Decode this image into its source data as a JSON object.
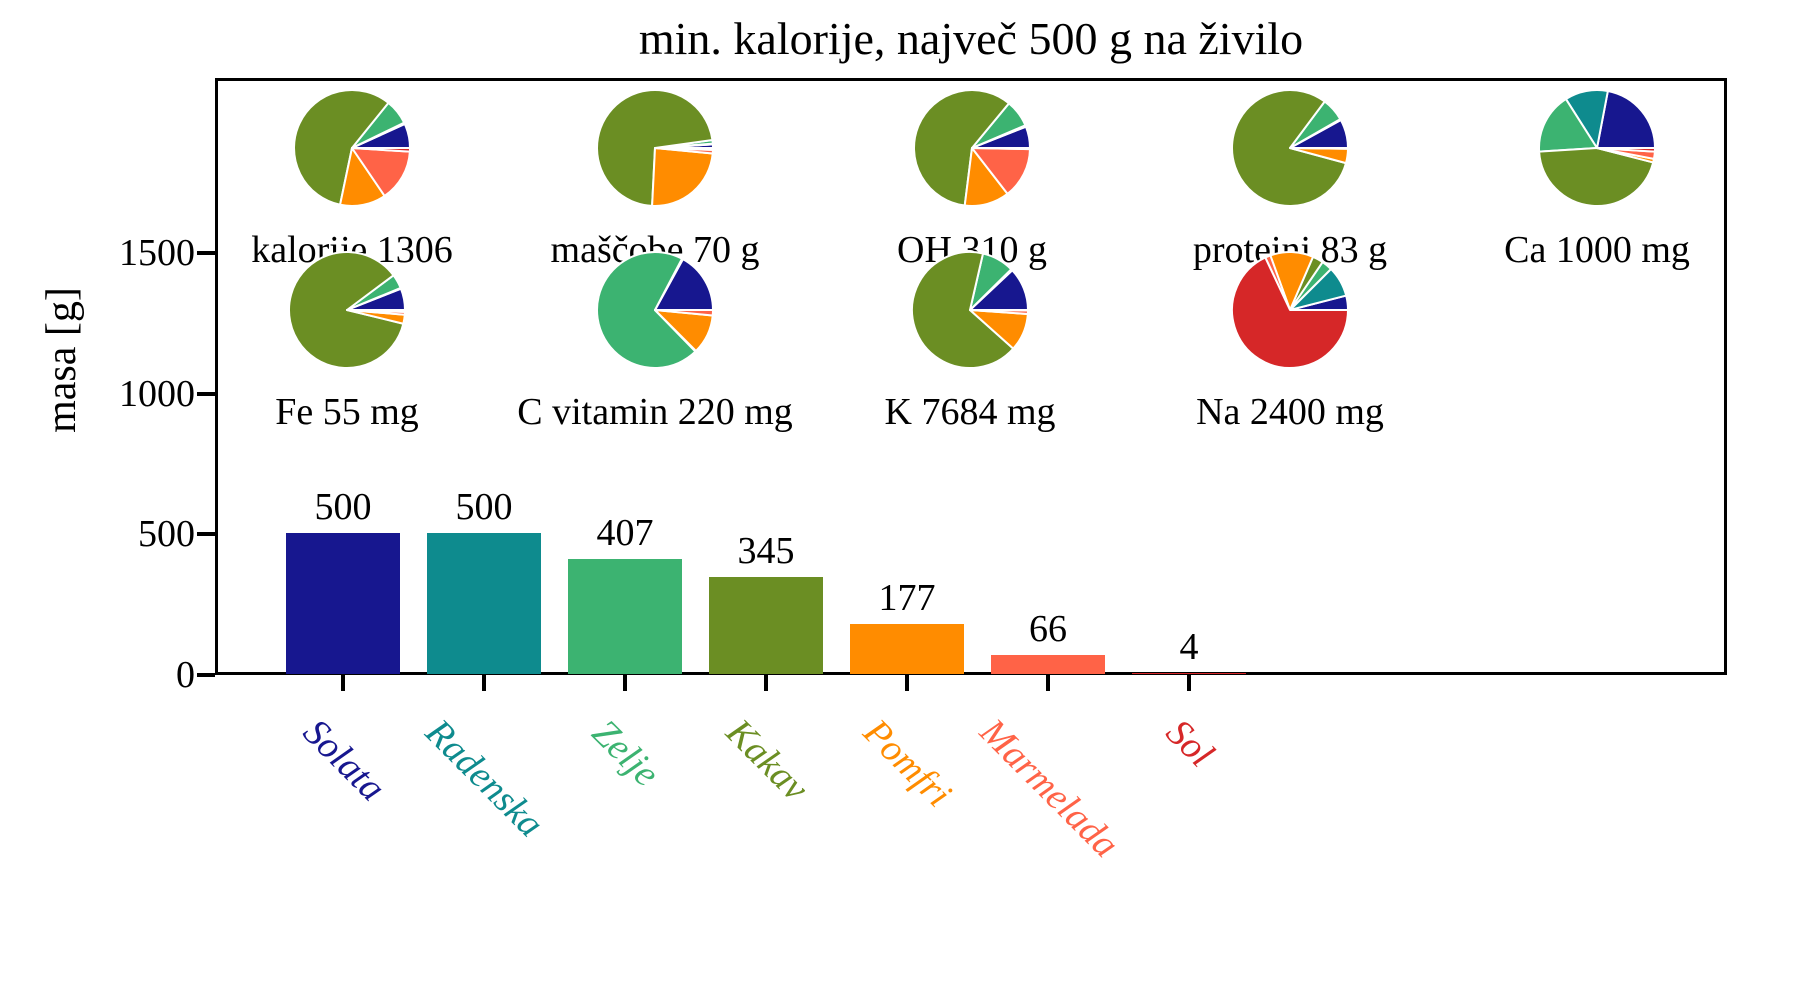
{
  "title": "min. kalorije, največ 500 g na živilo",
  "ylabel": "masa [g]",
  "foods": [
    {
      "name": "Solata",
      "color": "#17178f"
    },
    {
      "name": "Radenska",
      "color": "#0e8b8e"
    },
    {
      "name": "Zelje",
      "color": "#3cb371"
    },
    {
      "name": "Kakav",
      "color": "#6b8e23"
    },
    {
      "name": "Pomfri",
      "color": "#ff8c00"
    },
    {
      "name": "Marmelada",
      "color": "#ff6347"
    },
    {
      "name": "Sol",
      "color": "#d62728"
    }
  ],
  "chart_data": {
    "type": "bar",
    "title": "min. kalorije, največ 500 g na živilo",
    "xlabel": "",
    "ylabel": "masa [g]",
    "categories": [
      "Solata",
      "Radenska",
      "Zelje",
      "Kakav",
      "Pomfri",
      "Marmelada",
      "Sol"
    ],
    "values": [
      500,
      500,
      407,
      345,
      177,
      66,
      4
    ],
    "value_labels": [
      "500",
      "500",
      "407",
      "345",
      "177",
      "66",
      "4"
    ],
    "bar_colors": [
      "#17178f",
      "#0e8b8e",
      "#3cb371",
      "#6b8e23",
      "#ff8c00",
      "#ff6347",
      "#d62728"
    ],
    "yticks": [
      0,
      500,
      1000,
      1500
    ],
    "ylim": [
      0,
      2100
    ],
    "grid": false,
    "legend_position": "none",
    "pie_share_order": [
      "Solata",
      "Radenska",
      "Zelje",
      "Kakav",
      "Pomfri",
      "Marmelada",
      "Sol"
    ],
    "pies": [
      {
        "label": "kalorije 1306",
        "row": 0,
        "col": 0,
        "shares": [
          6.8,
          0.4,
          7.0,
          57.5,
          12.8,
          14.5,
          1.0
        ]
      },
      {
        "label": "maščobe 70 g",
        "row": 0,
        "col": 1,
        "shares": [
          1.0,
          0.2,
          1.0,
          72.0,
          24.3,
          1.0,
          0.5
        ]
      },
      {
        "label": "OH 310 g",
        "row": 0,
        "col": 2,
        "shares": [
          6.0,
          0.4,
          7.6,
          59.0,
          12.5,
          14.2,
          0.3
        ]
      },
      {
        "label": "proteini 83 g",
        "row": 0,
        "col": 3,
        "shares": [
          8.0,
          0.3,
          6.5,
          81.0,
          4.0,
          0.2,
          0.0
        ]
      },
      {
        "label": "Ca 1000 mg",
        "row": 0,
        "col": 4,
        "shares": [
          22.0,
          12.0,
          17.0,
          45.0,
          1.0,
          2.0,
          1.0
        ]
      },
      {
        "label": "Fe 55 mg",
        "row": 1,
        "col": 0,
        "shares": [
          6.0,
          0.2,
          4.0,
          86.0,
          2.5,
          0.8,
          0.5
        ]
      },
      {
        "label": "C vitamin 220 mg",
        "row": 1,
        "col": 1,
        "shares": [
          17.0,
          0.3,
          70.0,
          0.2,
          11.0,
          1.5,
          0.0
        ]
      },
      {
        "label": "K 7684 mg",
        "row": 1,
        "col": 2,
        "shares": [
          12.0,
          0.4,
          9.0,
          67.0,
          10.5,
          1.0,
          0.1
        ]
      },
      {
        "label": "Na 2400 mg",
        "row": 1,
        "col": 3,
        "shares": [
          4.0,
          8.5,
          3.0,
          3.0,
          12.0,
          1.5,
          68.0
        ]
      }
    ]
  }
}
